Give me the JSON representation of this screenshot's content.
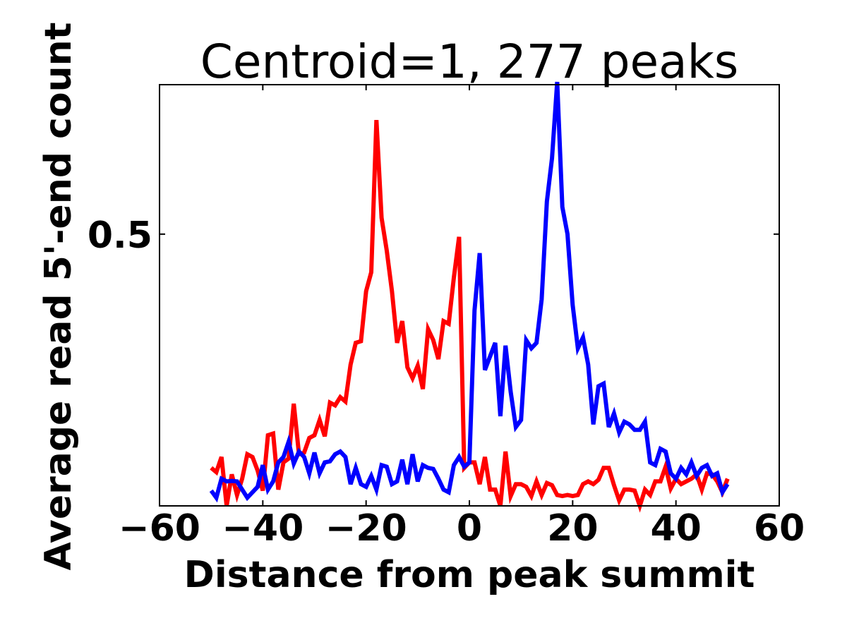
{
  "chart_data": {
    "type": "line",
    "title": "Centroid=1, 277 peaks",
    "xlabel": "Distance from peak summit",
    "ylabel": "Average read 5'-end count",
    "xlim": [
      -60,
      60
    ],
    "ylim": [
      0.0,
      0.775
    ],
    "xticks": [
      -60,
      -40,
      -20,
      0,
      20,
      40,
      60
    ],
    "xtick_labels": [
      "−60",
      "−40",
      "−20",
      "0",
      "20",
      "40",
      "60"
    ],
    "yticks": [
      0.5
    ],
    "ytick_labels": [
      "0.5"
    ],
    "grid": false,
    "x": [
      -50,
      -49,
      -48,
      -47,
      -46,
      -45,
      -44,
      -43,
      -42,
      -41,
      -40,
      -39,
      -38,
      -37,
      -36,
      -35,
      -34,
      -33,
      -32,
      -31,
      -30,
      -29,
      -28,
      -27,
      -26,
      -25,
      -24,
      -23,
      -22,
      -21,
      -20,
      -19,
      -18,
      -17,
      -16,
      -15,
      -14,
      -13,
      -12,
      -11,
      -10,
      -9,
      -8,
      -7,
      -6,
      -5,
      -4,
      -3,
      -2,
      -1,
      0,
      1,
      2,
      3,
      4,
      5,
      6,
      7,
      8,
      9,
      10,
      11,
      12,
      13,
      14,
      15,
      16,
      17,
      18,
      19,
      20,
      21,
      22,
      23,
      24,
      25,
      26,
      27,
      28,
      29,
      30,
      31,
      32,
      33,
      34,
      35,
      36,
      37,
      38,
      39,
      40,
      41,
      42,
      43,
      44,
      45,
      46,
      47,
      48,
      49,
      50
    ],
    "series": [
      {
        "color": "#ff0000",
        "values": [
          0.07,
          0.062,
          0.09,
          0.0,
          0.058,
          0.02,
          0.05,
          0.095,
          0.09,
          0.065,
          0.028,
          0.13,
          0.133,
          0.03,
          0.08,
          0.087,
          0.188,
          0.095,
          0.098,
          0.125,
          0.13,
          0.158,
          0.128,
          0.19,
          0.185,
          0.2,
          0.192,
          0.26,
          0.3,
          0.303,
          0.395,
          0.43,
          0.71,
          0.53,
          0.47,
          0.395,
          0.3,
          0.34,
          0.255,
          0.235,
          0.258,
          0.215,
          0.325,
          0.305,
          0.27,
          0.34,
          0.335,
          0.42,
          0.495,
          0.07,
          0.08,
          0.08,
          0.04,
          0.09,
          0.03,
          0.03,
          0.0,
          0.1,
          0.018,
          0.04,
          0.04,
          0.035,
          0.018,
          0.045,
          0.02,
          0.042,
          0.038,
          0.02,
          0.018,
          0.02,
          0.018,
          0.02,
          0.04,
          0.045,
          0.04,
          0.048,
          0.07,
          0.07,
          0.038,
          0.01,
          0.03,
          0.03,
          0.028,
          0.0,
          0.03,
          0.02,
          0.045,
          0.045,
          0.072,
          0.032,
          0.05,
          0.04,
          0.045,
          0.05,
          0.058,
          0.03,
          0.06,
          0.058,
          0.045,
          0.025,
          0.05
        ]
      },
      {
        "color": "#0000ff",
        "values": [
          0.028,
          0.015,
          0.05,
          0.045,
          0.046,
          0.045,
          0.03,
          0.015,
          0.025,
          0.035,
          0.075,
          0.03,
          0.045,
          0.08,
          0.09,
          0.118,
          0.078,
          0.1,
          0.09,
          0.06,
          0.098,
          0.06,
          0.08,
          0.082,
          0.095,
          0.1,
          0.09,
          0.04,
          0.07,
          0.04,
          0.035,
          0.055,
          0.03,
          0.075,
          0.072,
          0.04,
          0.045,
          0.085,
          0.04,
          0.095,
          0.045,
          0.075,
          0.07,
          0.068,
          0.05,
          0.03,
          0.025,
          0.075,
          0.09,
          0.072,
          0.08,
          0.36,
          0.465,
          0.25,
          0.275,
          0.3,
          0.165,
          0.295,
          0.21,
          0.145,
          0.158,
          0.305,
          0.29,
          0.3,
          0.38,
          0.56,
          0.64,
          0.78,
          0.55,
          0.5,
          0.37,
          0.29,
          0.31,
          0.26,
          0.15,
          0.22,
          0.225,
          0.145,
          0.17,
          0.135,
          0.155,
          0.15,
          0.14,
          0.14,
          0.155,
          0.08,
          0.075,
          0.105,
          0.1,
          0.06,
          0.05,
          0.07,
          0.058,
          0.08,
          0.055,
          0.07,
          0.075,
          0.055,
          0.06,
          0.025,
          0.04
        ]
      }
    ]
  }
}
